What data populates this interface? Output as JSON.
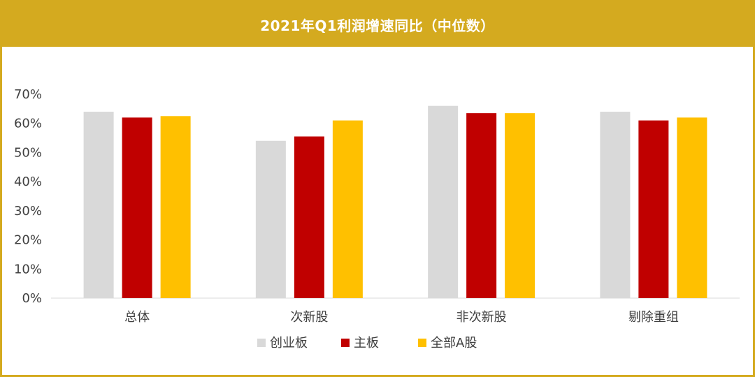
{
  "title": "2021年Q1利润增速同比（中位数）",
  "colors": {
    "banner": "#D4AA1F",
    "series": [
      "#D9D9D9",
      "#C00000",
      "#FFC000"
    ]
  },
  "chart_data": {
    "type": "bar",
    "title": "2021年Q1利润增速同比（中位数）",
    "categories": [
      "总体",
      "次新股",
      "非次新股",
      "剔除重组"
    ],
    "series": [
      {
        "name": "创业板",
        "values": [
          64,
          54,
          66,
          64
        ]
      },
      {
        "name": "主板",
        "values": [
          62,
          55.5,
          63.5,
          61
        ]
      },
      {
        "name": "全部A股",
        "values": [
          62.5,
          61,
          63.5,
          62
        ]
      }
    ],
    "ylim": [
      0,
      70
    ],
    "yticks": [
      "0%",
      "10%",
      "20%",
      "30%",
      "40%",
      "50%",
      "60%",
      "70%"
    ],
    "ytick_values": [
      0,
      10,
      20,
      30,
      40,
      50,
      60,
      70
    ],
    "grid": false,
    "legend_position": "bottom"
  }
}
